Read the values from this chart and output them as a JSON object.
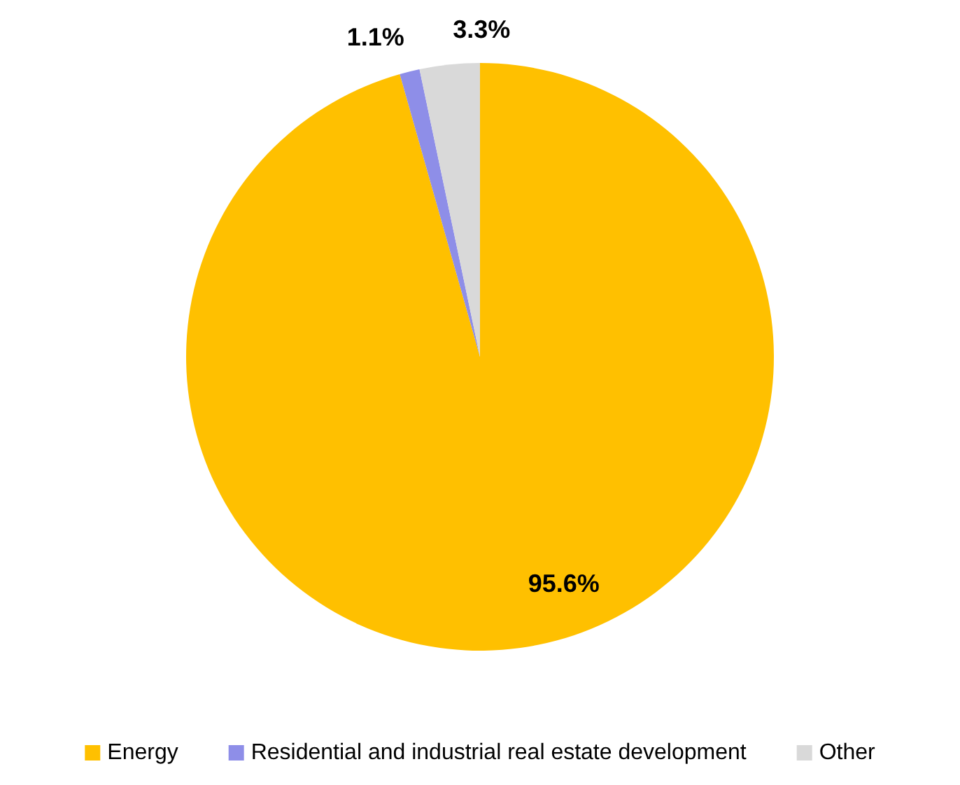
{
  "chart_data": {
    "type": "pie",
    "categories": [
      "Energy",
      "Residential and industrial real estate development",
      "Other"
    ],
    "values": [
      95.6,
      1.1,
      3.3
    ],
    "colors": [
      "#ffc000",
      "#8e8ee8",
      "#d9d9d9"
    ],
    "value_labels": [
      "95.6%",
      "1.1%",
      "3.3%"
    ],
    "legend": "bottom"
  }
}
